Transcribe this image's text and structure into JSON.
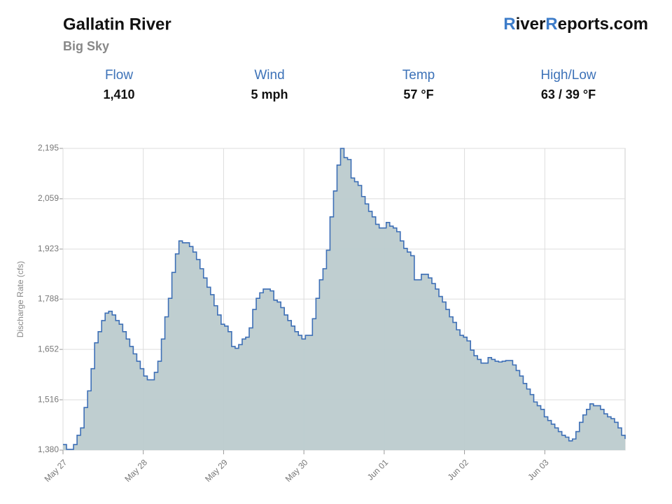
{
  "header": {
    "title": "Gallatin River",
    "subtitle": "Big Sky",
    "brand": [
      {
        "text": "R",
        "color": "#3d7cc9"
      },
      {
        "text": "iver",
        "color": "#111111"
      },
      {
        "text": "R",
        "color": "#3d7cc9"
      },
      {
        "text": "eports.com",
        "color": "#111111"
      }
    ]
  },
  "stats": [
    {
      "label": "Flow",
      "value": "1,410"
    },
    {
      "label": "Wind",
      "value": "5 mph"
    },
    {
      "label": "Temp",
      "value": "57 °F"
    },
    {
      "label": "High/Low",
      "value": "63 / 39 °F"
    }
  ],
  "chart_data": {
    "type": "step-area",
    "ylabel": "Discharge Rate (cfs)",
    "line_color": "#3d6fb6",
    "fill_color": "#bccbcd",
    "grid": true,
    "xlim": [
      0,
      7
    ],
    "xticks": [
      {
        "value": 0,
        "label": "May 27"
      },
      {
        "value": 1,
        "label": "May 28"
      },
      {
        "value": 2,
        "label": "May 29"
      },
      {
        "value": 3,
        "label": "May 30"
      },
      {
        "value": 4,
        "label": "Jun 01"
      },
      {
        "value": 5,
        "label": "Jun 02"
      },
      {
        "value": 6,
        "label": "Jun 03"
      }
    ],
    "ylim": [
      1380,
      2195
    ],
    "yticks": [
      {
        "value": 1380,
        "label": "1,380"
      },
      {
        "value": 1516,
        "label": "1,516"
      },
      {
        "value": 1652,
        "label": "1,652"
      },
      {
        "value": 1788,
        "label": "1,788"
      },
      {
        "value": 1923,
        "label": "1,923"
      },
      {
        "value": 2059,
        "label": "2,059"
      },
      {
        "value": 2195,
        "label": "2,195"
      }
    ],
    "values": [
      1395,
      1382,
      1382,
      1395,
      1420,
      1440,
      1495,
      1540,
      1600,
      1670,
      1700,
      1730,
      1750,
      1755,
      1745,
      1730,
      1720,
      1700,
      1680,
      1660,
      1640,
      1620,
      1600,
      1580,
      1570,
      1570,
      1590,
      1620,
      1680,
      1740,
      1790,
      1860,
      1910,
      1945,
      1940,
      1940,
      1930,
      1915,
      1895,
      1870,
      1845,
      1820,
      1800,
      1770,
      1745,
      1720,
      1715,
      1700,
      1660,
      1655,
      1665,
      1680,
      1685,
      1710,
      1760,
      1790,
      1805,
      1815,
      1815,
      1810,
      1785,
      1780,
      1765,
      1745,
      1730,
      1715,
      1700,
      1690,
      1680,
      1690,
      1690,
      1735,
      1790,
      1840,
      1870,
      1920,
      2010,
      2080,
      2150,
      2195,
      2170,
      2165,
      2115,
      2105,
      2095,
      2065,
      2045,
      2025,
      2010,
      1990,
      1980,
      1980,
      1995,
      1985,
      1980,
      1970,
      1945,
      1925,
      1915,
      1905,
      1840,
      1840,
      1855,
      1855,
      1845,
      1830,
      1815,
      1795,
      1780,
      1760,
      1740,
      1725,
      1705,
      1690,
      1685,
      1675,
      1650,
      1635,
      1625,
      1615,
      1615,
      1630,
      1625,
      1620,
      1618,
      1620,
      1622,
      1622,
      1610,
      1595,
      1580,
      1560,
      1545,
      1530,
      1510,
      1500,
      1490,
      1470,
      1460,
      1450,
      1440,
      1430,
      1420,
      1415,
      1405,
      1410,
      1430,
      1455,
      1475,
      1490,
      1505,
      1500,
      1500,
      1490,
      1478,
      1470,
      1465,
      1455,
      1440,
      1420,
      1410
    ]
  }
}
